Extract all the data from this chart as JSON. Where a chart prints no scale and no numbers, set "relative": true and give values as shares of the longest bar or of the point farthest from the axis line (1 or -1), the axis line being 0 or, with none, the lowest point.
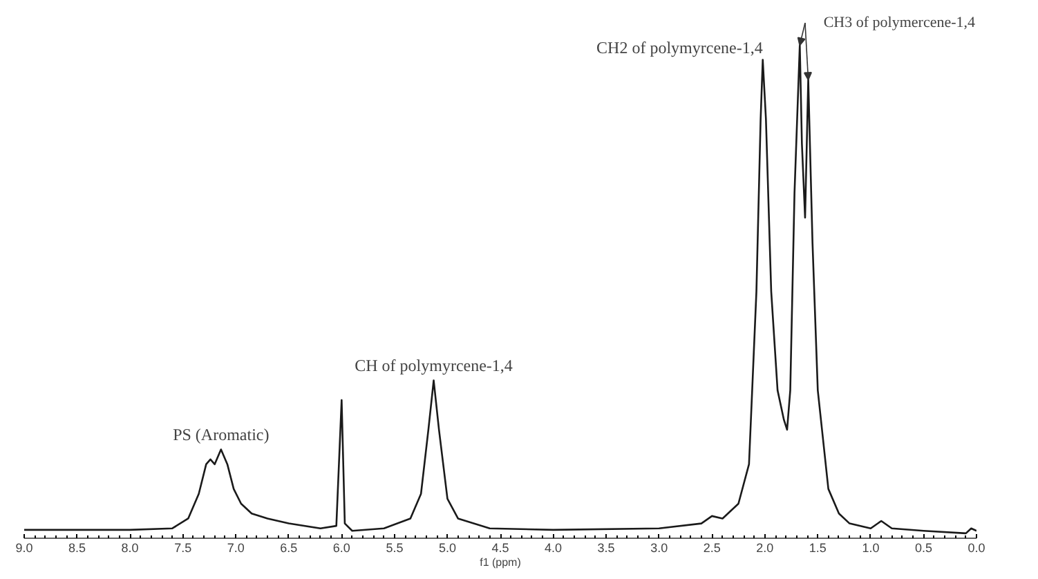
{
  "chart_data": {
    "type": "line",
    "relative": true,
    "xlabel": "f1 (ppm)",
    "xlim": [
      9.0,
      0.0
    ],
    "xticks": [
      {
        "value": 9.0,
        "label": "9.0"
      },
      {
        "value": 8.5,
        "label": "8.5"
      },
      {
        "value": 8.0,
        "label": "8.0"
      },
      {
        "value": 7.5,
        "label": "7.5"
      },
      {
        "value": 7.0,
        "label": "7.0"
      },
      {
        "value": 6.5,
        "label": "6.5"
      },
      {
        "value": 6.0,
        "label": "6.0"
      },
      {
        "value": 5.5,
        "label": "5.5"
      },
      {
        "value": 5.0,
        "label": "5.0"
      },
      {
        "value": 4.5,
        "label": "4.5"
      },
      {
        "value": 4.0,
        "label": "4.0"
      },
      {
        "value": 3.5,
        "label": "3.5"
      },
      {
        "value": 3.0,
        "label": "3.0"
      },
      {
        "value": 2.5,
        "label": "2.5"
      },
      {
        "value": 2.0,
        "label": "2.0"
      },
      {
        "value": 1.5,
        "label": "1.5"
      },
      {
        "value": 1.0,
        "label": "1.0"
      },
      {
        "value": 0.5,
        "label": "0.5"
      },
      {
        "value": 0.0,
        "label": "0.0"
      }
    ],
    "series": [
      {
        "color": "#1a1a1a",
        "x": [
          9.0,
          8.0,
          7.6,
          7.45,
          7.35,
          7.28,
          7.24,
          7.2,
          7.14,
          7.08,
          7.02,
          6.95,
          6.85,
          6.7,
          6.5,
          6.2,
          6.05,
          6.0,
          5.97,
          5.9,
          5.6,
          5.35,
          5.25,
          5.18,
          5.13,
          5.08,
          5.0,
          4.9,
          4.6,
          4.0,
          3.0,
          2.6,
          2.5,
          2.4,
          2.25,
          2.15,
          2.08,
          2.04,
          2.02,
          1.99,
          1.94,
          1.88,
          1.82,
          1.79,
          1.76,
          1.72,
          1.67,
          1.65,
          1.62,
          1.59,
          1.55,
          1.5,
          1.4,
          1.3,
          1.2,
          1.0,
          0.9,
          0.8,
          0.5,
          0.1,
          0.05,
          0.0
        ],
        "values": [
          0.017,
          0.017,
          0.02,
          0.04,
          0.09,
          0.15,
          0.16,
          0.15,
          0.18,
          0.15,
          0.1,
          0.07,
          0.05,
          0.04,
          0.03,
          0.02,
          0.025,
          0.28,
          0.03,
          0.015,
          0.02,
          0.04,
          0.09,
          0.22,
          0.32,
          0.22,
          0.08,
          0.04,
          0.02,
          0.017,
          0.02,
          0.03,
          0.045,
          0.04,
          0.07,
          0.15,
          0.5,
          0.85,
          0.97,
          0.85,
          0.5,
          0.3,
          0.24,
          0.22,
          0.3,
          0.7,
          1.0,
          0.8,
          0.65,
          0.93,
          0.6,
          0.3,
          0.1,
          0.05,
          0.03,
          0.02,
          0.035,
          0.02,
          0.015,
          0.01,
          0.02,
          0.015
        ]
      }
    ],
    "annotations": [
      {
        "text": "PS (Aromatic)",
        "x": 7.14,
        "y": 0.18
      },
      {
        "text": "CH of polymyrcene-1,4",
        "x": 5.13,
        "y": 0.32
      },
      {
        "text": "CH2 of polymyrcene-1,4",
        "x": 2.02,
        "y": 0.97
      },
      {
        "text": "CH3 of polymercene-1,4",
        "x": 1.67,
        "y": 1.0
      }
    ]
  }
}
